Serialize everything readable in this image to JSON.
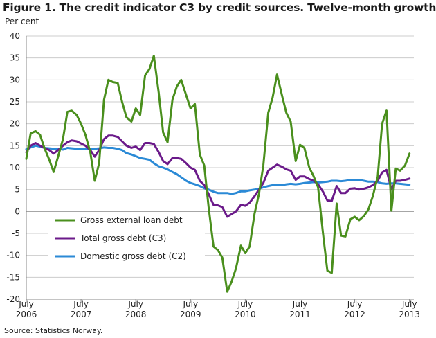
{
  "title": "Figure 1. The credit indicator C3 by credit sources. Twelve-month growth",
  "source": "Source: Statistics Norway.",
  "colors": {
    "green": "#4a8f1d",
    "purple": "#6b1a8a",
    "blue": "#2b8ad6",
    "grid": "#cccccc"
  },
  "chart_data": {
    "type": "line",
    "ylabel": "Per cent",
    "ylim": [
      -20,
      40
    ],
    "yticks": [
      40,
      35,
      30,
      25,
      20,
      15,
      10,
      5,
      0,
      -5,
      -10,
      -15,
      -20
    ],
    "xlim": [
      2006.5,
      2013.58
    ],
    "xticks": [
      {
        "x": 2006.5,
        "line1": "July",
        "line2": "2006"
      },
      {
        "x": 2007.5,
        "line1": "July",
        "line2": "2007"
      },
      {
        "x": 2008.5,
        "line1": "July",
        "line2": "2008"
      },
      {
        "x": 2009.5,
        "line1": "July",
        "line2": "2009"
      },
      {
        "x": 2010.5,
        "line1": "July",
        "line2": "2010"
      },
      {
        "x": 2011.5,
        "line1": "July",
        "line2": "2011"
      },
      {
        "x": 2012.5,
        "line1": "July",
        "line2": "2012"
      },
      {
        "x": 2013.5,
        "line1": "July",
        "line2": "2013"
      }
    ],
    "grid": true,
    "legend_position": "bottom-left",
    "series": [
      {
        "name": "Gross external loan debt",
        "color": "#4a8f1d",
        "points": [
          [
            2006.5,
            12.0
          ],
          [
            2006.58,
            17.8
          ],
          [
            2006.67,
            18.3
          ],
          [
            2006.75,
            17.5
          ],
          [
            2006.83,
            14.5
          ],
          [
            2006.92,
            11.8
          ],
          [
            2007.0,
            9.0
          ],
          [
            2007.08,
            12.5
          ],
          [
            2007.17,
            16.5
          ],
          [
            2007.25,
            22.7
          ],
          [
            2007.33,
            23.0
          ],
          [
            2007.42,
            22.0
          ],
          [
            2007.5,
            20.0
          ],
          [
            2007.58,
            17.5
          ],
          [
            2007.67,
            13.5
          ],
          [
            2007.75,
            7.0
          ],
          [
            2007.83,
            11.0
          ],
          [
            2007.92,
            25.5
          ],
          [
            2008.0,
            30.0
          ],
          [
            2008.08,
            29.5
          ],
          [
            2008.17,
            29.3
          ],
          [
            2008.25,
            25.0
          ],
          [
            2008.33,
            21.5
          ],
          [
            2008.42,
            20.5
          ],
          [
            2008.5,
            23.5
          ],
          [
            2008.58,
            22.0
          ],
          [
            2008.67,
            31.0
          ],
          [
            2008.75,
            32.5
          ],
          [
            2008.83,
            35.5
          ],
          [
            2008.92,
            27.0
          ],
          [
            2009.0,
            18.0
          ],
          [
            2009.08,
            15.8
          ],
          [
            2009.17,
            25.5
          ],
          [
            2009.25,
            28.5
          ],
          [
            2009.33,
            30.0
          ],
          [
            2009.42,
            26.5
          ],
          [
            2009.5,
            23.5
          ],
          [
            2009.58,
            24.5
          ],
          [
            2009.67,
            13.0
          ],
          [
            2009.75,
            10.5
          ],
          [
            2009.83,
            1.0
          ],
          [
            2009.92,
            -8.0
          ],
          [
            2010.0,
            -8.8
          ],
          [
            2010.08,
            -10.5
          ],
          [
            2010.17,
            -18.3
          ],
          [
            2010.25,
            -16.0
          ],
          [
            2010.33,
            -13.0
          ],
          [
            2010.42,
            -7.8
          ],
          [
            2010.5,
            -9.5
          ],
          [
            2010.58,
            -8.0
          ],
          [
            2010.67,
            -0.5
          ],
          [
            2010.75,
            4.0
          ],
          [
            2010.83,
            10.5
          ],
          [
            2010.92,
            22.5
          ],
          [
            2011.0,
            26.0
          ],
          [
            2011.08,
            31.2
          ],
          [
            2011.17,
            26.5
          ],
          [
            2011.25,
            22.5
          ],
          [
            2011.33,
            20.5
          ],
          [
            2011.42,
            11.5
          ],
          [
            2011.5,
            15.2
          ],
          [
            2011.58,
            14.5
          ],
          [
            2011.67,
            10.0
          ],
          [
            2011.75,
            8.0
          ],
          [
            2011.83,
            5.5
          ],
          [
            2011.92,
            -5.0
          ],
          [
            2012.0,
            -13.5
          ],
          [
            2012.08,
            -14.0
          ],
          [
            2012.17,
            1.8
          ],
          [
            2012.25,
            -5.5
          ],
          [
            2012.33,
            -5.7
          ],
          [
            2012.42,
            -1.8
          ],
          [
            2012.5,
            -1.2
          ],
          [
            2012.58,
            -2.0
          ],
          [
            2012.67,
            -1.0
          ],
          [
            2012.75,
            0.5
          ],
          [
            2012.83,
            3.5
          ],
          [
            2012.92,
            8.0
          ],
          [
            2013.0,
            20.0
          ],
          [
            2013.08,
            23.0
          ],
          [
            2013.17,
            0.2
          ],
          [
            2013.25,
            9.8
          ],
          [
            2013.33,
            9.3
          ],
          [
            2013.42,
            10.5
          ],
          [
            2013.5,
            13.2
          ]
        ]
      },
      {
        "name": "Total gross debt (C3)",
        "color": "#6b1a8a",
        "points": [
          [
            2006.5,
            13.5
          ],
          [
            2006.58,
            15.0
          ],
          [
            2006.67,
            15.6
          ],
          [
            2006.75,
            15.0
          ],
          [
            2006.83,
            14.5
          ],
          [
            2006.92,
            14.0
          ],
          [
            2007.0,
            13.2
          ],
          [
            2007.08,
            14.0
          ],
          [
            2007.17,
            15.0
          ],
          [
            2007.25,
            15.8
          ],
          [
            2007.33,
            16.2
          ],
          [
            2007.42,
            16.0
          ],
          [
            2007.5,
            15.5
          ],
          [
            2007.58,
            15.0
          ],
          [
            2007.67,
            14.0
          ],
          [
            2007.75,
            12.5
          ],
          [
            2007.83,
            14.0
          ],
          [
            2007.92,
            16.5
          ],
          [
            2008.0,
            17.3
          ],
          [
            2008.08,
            17.3
          ],
          [
            2008.17,
            17.0
          ],
          [
            2008.25,
            16.0
          ],
          [
            2008.33,
            15.0
          ],
          [
            2008.42,
            14.5
          ],
          [
            2008.5,
            14.8
          ],
          [
            2008.58,
            14.0
          ],
          [
            2008.67,
            15.6
          ],
          [
            2008.75,
            15.6
          ],
          [
            2008.83,
            15.4
          ],
          [
            2008.92,
            13.5
          ],
          [
            2009.0,
            11.5
          ],
          [
            2009.08,
            10.8
          ],
          [
            2009.17,
            12.2
          ],
          [
            2009.25,
            12.2
          ],
          [
            2009.33,
            12.0
          ],
          [
            2009.42,
            11.0
          ],
          [
            2009.5,
            10.0
          ],
          [
            2009.58,
            9.5
          ],
          [
            2009.67,
            7.0
          ],
          [
            2009.75,
            6.0
          ],
          [
            2009.83,
            4.0
          ],
          [
            2009.92,
            1.5
          ],
          [
            2010.0,
            1.4
          ],
          [
            2010.08,
            1.0
          ],
          [
            2010.17,
            -1.2
          ],
          [
            2010.25,
            -0.6
          ],
          [
            2010.33,
            0.0
          ],
          [
            2010.42,
            1.5
          ],
          [
            2010.5,
            1.3
          ],
          [
            2010.58,
            2.0
          ],
          [
            2010.67,
            3.5
          ],
          [
            2010.75,
            5.0
          ],
          [
            2010.83,
            6.5
          ],
          [
            2010.92,
            9.3
          ],
          [
            2011.0,
            10.0
          ],
          [
            2011.08,
            10.7
          ],
          [
            2011.17,
            10.2
          ],
          [
            2011.25,
            9.6
          ],
          [
            2011.33,
            9.3
          ],
          [
            2011.42,
            7.2
          ],
          [
            2011.5,
            8.0
          ],
          [
            2011.58,
            8.0
          ],
          [
            2011.67,
            7.4
          ],
          [
            2011.75,
            7.0
          ],
          [
            2011.83,
            6.2
          ],
          [
            2011.92,
            4.5
          ],
          [
            2012.0,
            2.5
          ],
          [
            2012.08,
            2.4
          ],
          [
            2012.17,
            5.8
          ],
          [
            2012.25,
            4.2
          ],
          [
            2012.33,
            4.2
          ],
          [
            2012.42,
            5.2
          ],
          [
            2012.5,
            5.3
          ],
          [
            2012.58,
            5.0
          ],
          [
            2012.67,
            5.2
          ],
          [
            2012.75,
            5.5
          ],
          [
            2012.83,
            6.0
          ],
          [
            2012.92,
            7.0
          ],
          [
            2013.0,
            8.9
          ],
          [
            2013.08,
            9.5
          ],
          [
            2013.17,
            5.0
          ],
          [
            2013.25,
            7.0
          ],
          [
            2013.33,
            7.0
          ],
          [
            2013.42,
            7.2
          ],
          [
            2013.5,
            7.5
          ]
        ]
      },
      {
        "name": "Domestic gross debt (C2)",
        "color": "#2b8ad6",
        "points": [
          [
            2006.5,
            14.2
          ],
          [
            2006.58,
            14.6
          ],
          [
            2006.67,
            15.0
          ],
          [
            2006.75,
            14.8
          ],
          [
            2006.83,
            14.5
          ],
          [
            2006.92,
            14.4
          ],
          [
            2007.0,
            14.3
          ],
          [
            2007.08,
            14.3
          ],
          [
            2007.17,
            14.1
          ],
          [
            2007.25,
            14.5
          ],
          [
            2007.33,
            14.4
          ],
          [
            2007.42,
            14.3
          ],
          [
            2007.5,
            14.3
          ],
          [
            2007.58,
            14.2
          ],
          [
            2007.67,
            14.3
          ],
          [
            2007.75,
            14.3
          ],
          [
            2007.83,
            14.4
          ],
          [
            2007.92,
            14.6
          ],
          [
            2008.0,
            14.5
          ],
          [
            2008.08,
            14.5
          ],
          [
            2008.17,
            14.3
          ],
          [
            2008.25,
            14.0
          ],
          [
            2008.33,
            13.3
          ],
          [
            2008.42,
            13.0
          ],
          [
            2008.5,
            12.6
          ],
          [
            2008.58,
            12.2
          ],
          [
            2008.67,
            12.0
          ],
          [
            2008.75,
            11.8
          ],
          [
            2008.83,
            11.0
          ],
          [
            2008.92,
            10.3
          ],
          [
            2009.0,
            10.0
          ],
          [
            2009.08,
            9.6
          ],
          [
            2009.17,
            9.0
          ],
          [
            2009.25,
            8.5
          ],
          [
            2009.33,
            7.8
          ],
          [
            2009.42,
            7.0
          ],
          [
            2009.5,
            6.5
          ],
          [
            2009.58,
            6.2
          ],
          [
            2009.67,
            5.8
          ],
          [
            2009.75,
            5.3
          ],
          [
            2009.83,
            5.0
          ],
          [
            2009.92,
            4.5
          ],
          [
            2010.0,
            4.2
          ],
          [
            2010.08,
            4.2
          ],
          [
            2010.17,
            4.2
          ],
          [
            2010.25,
            4.0
          ],
          [
            2010.33,
            4.2
          ],
          [
            2010.42,
            4.6
          ],
          [
            2010.5,
            4.6
          ],
          [
            2010.58,
            4.8
          ],
          [
            2010.67,
            5.0
          ],
          [
            2010.75,
            5.2
          ],
          [
            2010.83,
            5.5
          ],
          [
            2010.92,
            5.8
          ],
          [
            2011.0,
            6.0
          ],
          [
            2011.08,
            6.0
          ],
          [
            2011.17,
            6.0
          ],
          [
            2011.25,
            6.2
          ],
          [
            2011.33,
            6.3
          ],
          [
            2011.42,
            6.2
          ],
          [
            2011.5,
            6.3
          ],
          [
            2011.58,
            6.5
          ],
          [
            2011.67,
            6.6
          ],
          [
            2011.75,
            6.7
          ],
          [
            2011.83,
            6.6
          ],
          [
            2011.92,
            6.7
          ],
          [
            2012.0,
            6.8
          ],
          [
            2012.08,
            7.0
          ],
          [
            2012.17,
            7.0
          ],
          [
            2012.25,
            6.9
          ],
          [
            2012.33,
            7.0
          ],
          [
            2012.42,
            7.2
          ],
          [
            2012.5,
            7.2
          ],
          [
            2012.58,
            7.2
          ],
          [
            2012.67,
            7.0
          ],
          [
            2012.75,
            6.8
          ],
          [
            2012.83,
            6.8
          ],
          [
            2012.92,
            6.7
          ],
          [
            2013.0,
            6.4
          ],
          [
            2013.08,
            6.3
          ],
          [
            2013.17,
            6.4
          ],
          [
            2013.25,
            6.4
          ],
          [
            2013.33,
            6.3
          ],
          [
            2013.42,
            6.2
          ],
          [
            2013.5,
            6.1
          ]
        ]
      }
    ]
  }
}
